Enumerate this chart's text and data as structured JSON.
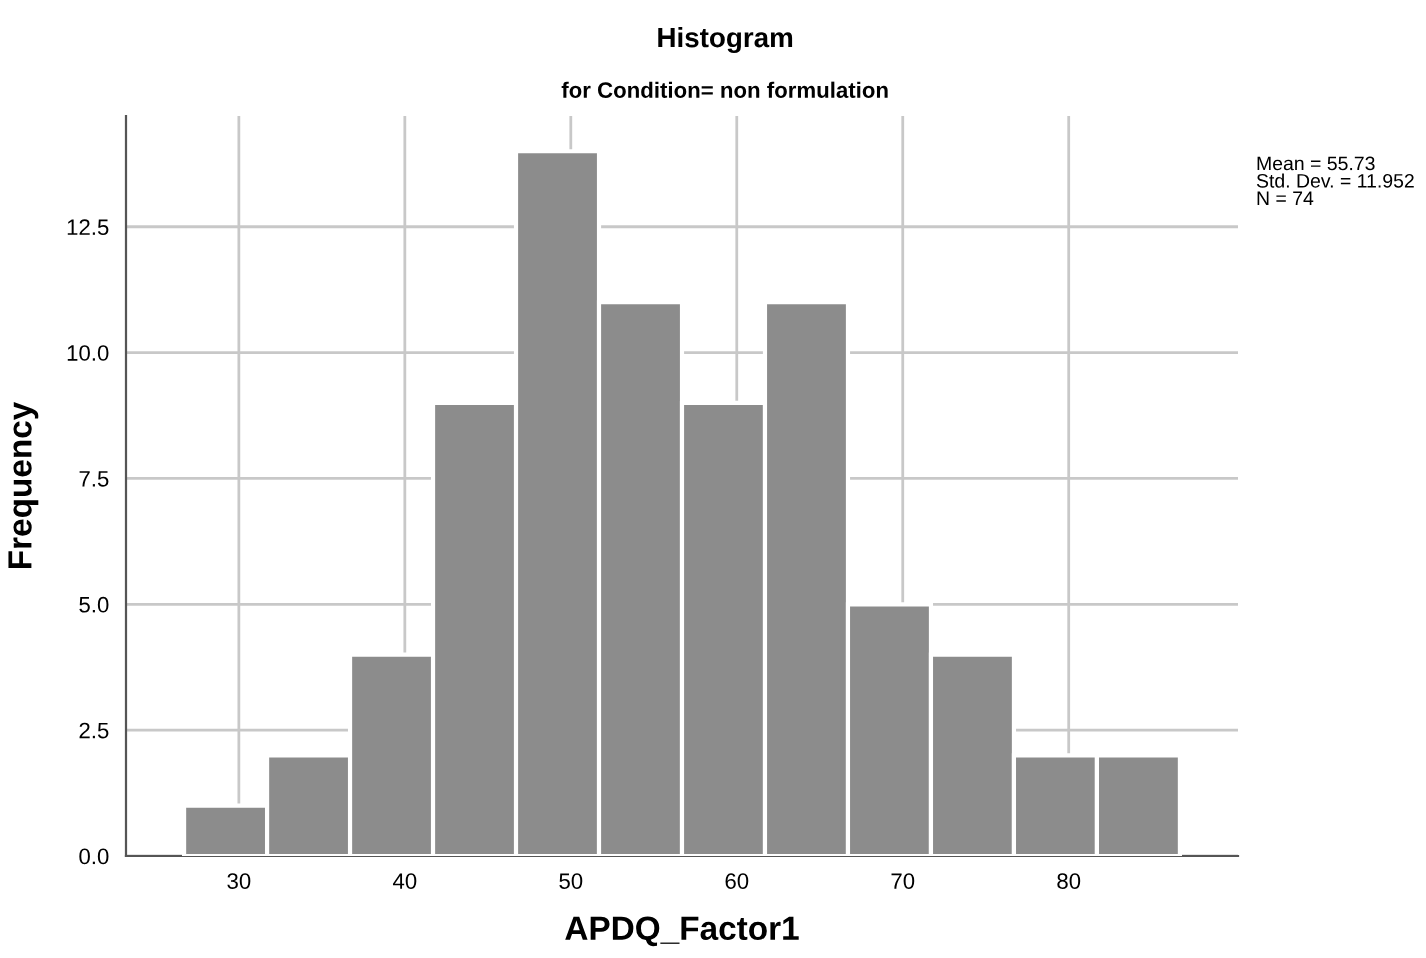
{
  "chart_data": {
    "type": "histogram",
    "title": "Histogram",
    "subtitle": "for Condition= non formulation",
    "xlabel": "APDQ_Factor1",
    "ylabel": "Frequency",
    "bins": [
      26.7,
      31.7,
      36.7,
      41.7,
      46.7,
      51.7,
      56.7,
      61.7,
      66.7,
      71.7,
      76.7,
      81.7,
      86.7
    ],
    "values": [
      1,
      2,
      4,
      9,
      14,
      11,
      9,
      11,
      5,
      4,
      2,
      2
    ],
    "color": "#8c8c8c",
    "xlim": [
      23.2,
      90.2
    ],
    "xticks": [
      30,
      40,
      50,
      60,
      70,
      80
    ],
    "ylim": [
      0,
      14.7
    ],
    "yticks": [
      {
        "value": 0,
        "label": "0.0"
      },
      {
        "value": 2.5,
        "label": "2.5"
      },
      {
        "value": 5,
        "label": "5.0"
      },
      {
        "value": 7.5,
        "label": "7.5"
      },
      {
        "value": 10,
        "label": "10.0"
      },
      {
        "value": 12.5,
        "label": "12.5"
      }
    ],
    "grid": true,
    "annotations": [
      "Mean = 55.73\nStd. Dev. = 11.952\nN = 74"
    ]
  }
}
